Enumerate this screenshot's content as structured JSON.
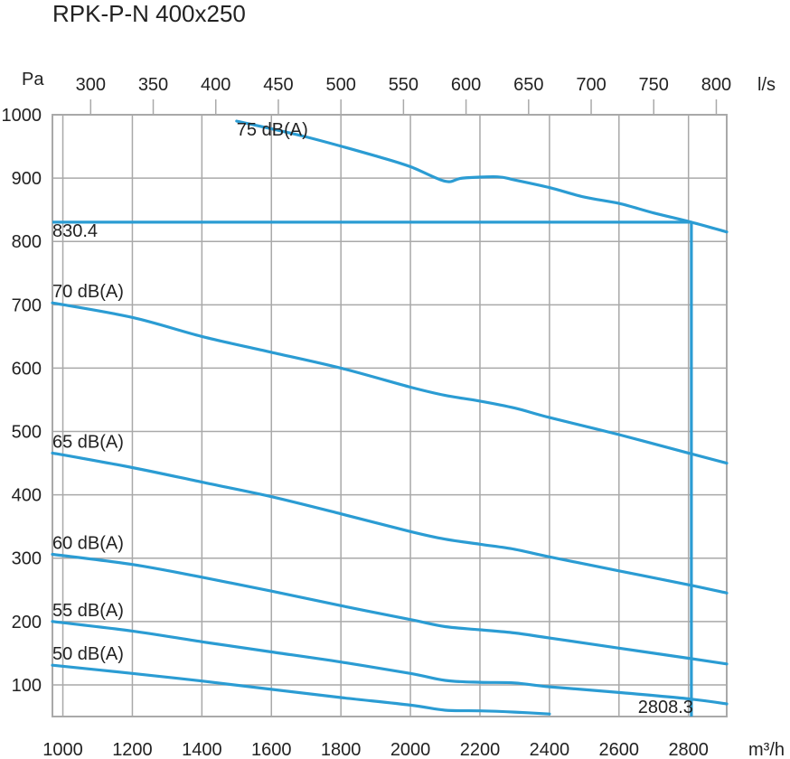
{
  "chart_data": {
    "type": "line",
    "title": "RPK-P-N 400x250",
    "xlabel": "m³/h",
    "ylabel": "Pa",
    "x2label": "l/s",
    "xlim": [
      970,
      2910
    ],
    "ylim": [
      50,
      1000
    ],
    "x_ticks": [
      1000,
      1200,
      1400,
      1600,
      1800,
      2000,
      2200,
      2400,
      2600,
      2800
    ],
    "y_ticks": [
      100,
      200,
      300,
      400,
      500,
      600,
      700,
      800,
      900,
      1000
    ],
    "x2_ticks": [
      300,
      350,
      400,
      450,
      500,
      550,
      600,
      650,
      700,
      750,
      800
    ],
    "grid": true,
    "series": [
      {
        "name": "75 dB(A)",
        "x": [
          1500,
          1700,
          1900,
          2000,
          2100,
          2150,
          2250,
          2300,
          2400,
          2500,
          2600,
          2700,
          2808.3,
          2910
        ],
        "y": [
          990,
          965,
          935,
          918,
          895,
          900,
          902,
          897,
          885,
          870,
          860,
          845,
          830.4,
          815
        ]
      },
      {
        "name": "70 dB(A)",
        "x": [
          970,
          1200,
          1400,
          1600,
          1800,
          2000,
          2100,
          2200,
          2300,
          2400,
          2600,
          2800,
          2910
        ],
        "y": [
          703,
          680,
          650,
          625,
          600,
          570,
          557,
          548,
          537,
          522,
          495,
          466,
          450
        ]
      },
      {
        "name": "65 dB(A)",
        "x": [
          970,
          1200,
          1400,
          1600,
          1800,
          2000,
          2100,
          2200,
          2300,
          2400,
          2600,
          2800,
          2910
        ],
        "y": [
          466,
          443,
          420,
          397,
          370,
          342,
          330,
          322,
          314,
          302,
          280,
          258,
          245
        ]
      },
      {
        "name": "60 dB(A)",
        "x": [
          970,
          1200,
          1400,
          1600,
          1800,
          2000,
          2100,
          2200,
          2300,
          2400,
          2600,
          2800,
          2910
        ],
        "y": [
          306,
          290,
          270,
          248,
          225,
          203,
          192,
          187,
          182,
          174,
          158,
          142,
          133
        ]
      },
      {
        "name": "55 dB(A)",
        "x": [
          970,
          1200,
          1400,
          1600,
          1800,
          2000,
          2100,
          2200,
          2300,
          2400,
          2600,
          2800,
          2910
        ],
        "y": [
          200,
          185,
          168,
          152,
          136,
          118,
          107,
          104,
          103,
          97,
          88,
          78,
          70
        ]
      },
      {
        "name": "50 dB(A)",
        "x": [
          970,
          1200,
          1400,
          1600,
          1800,
          2000,
          2100,
          2200,
          2300,
          2400
        ],
        "y": [
          131,
          118,
          106,
          93,
          80,
          68,
          60,
          59,
          57,
          54
        ]
      }
    ],
    "operating_point": {
      "x": 2808.3,
      "y": 830.4,
      "x_label": "2808.3",
      "y_label": "830.4"
    }
  }
}
